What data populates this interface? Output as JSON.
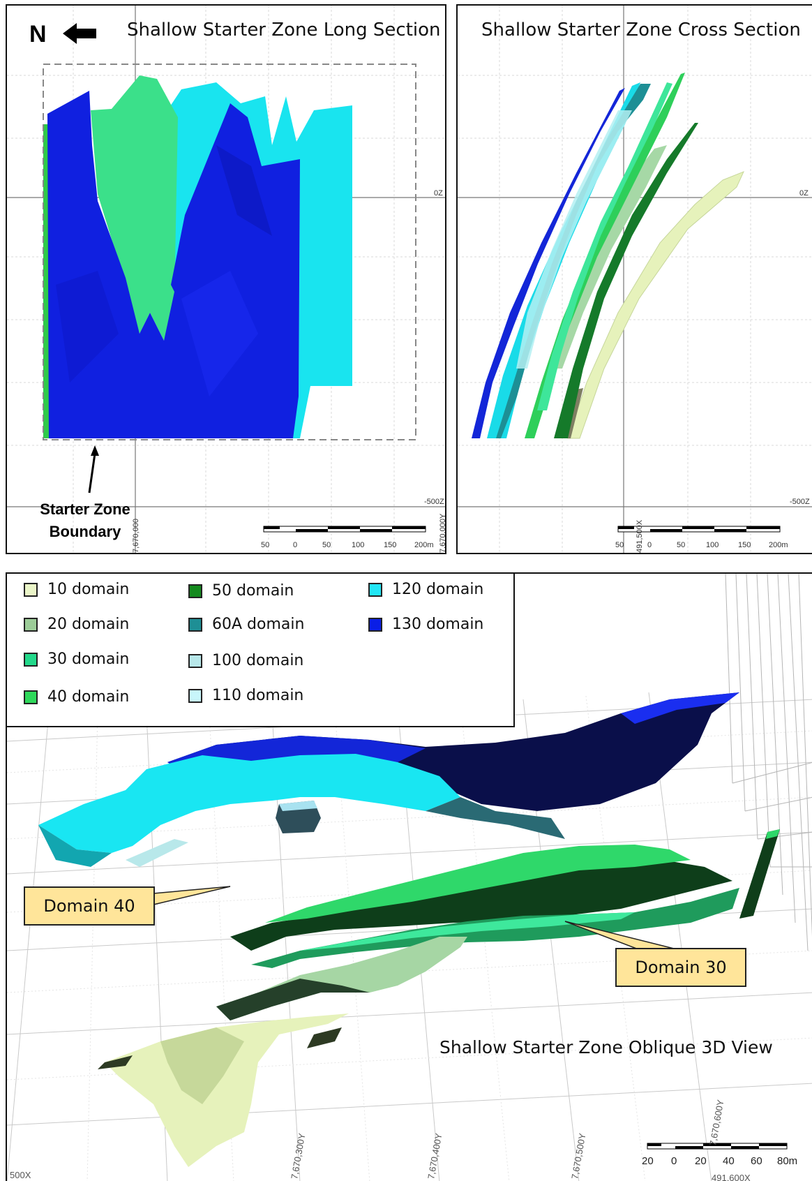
{
  "long_section": {
    "title": "Shallow Starter Zone Long Section",
    "north_label": "N",
    "boundary_label_line1": "Starter Zone",
    "boundary_label_line2": "Boundary",
    "elevation_top": "0Z",
    "elevation_bottom": "-500Z",
    "easting_label": "7,670,000Y",
    "northing_label": "7,670,000",
    "scale_ticks": [
      "50",
      "0",
      "50",
      "100",
      "150",
      "200m"
    ]
  },
  "cross_section": {
    "title": "Shallow Starter Zone Cross Section",
    "elevation_top": "0Z",
    "elevation_bottom": "-500Z",
    "coord_label": "491,500X",
    "scale_ticks": [
      "50",
      "0",
      "50",
      "100",
      "150",
      "200m"
    ]
  },
  "oblique_view": {
    "title": "Shallow Starter Zone Oblique 3D View",
    "callout_domain_40": "Domain 40",
    "callout_domain_30": "Domain 30",
    "grid_labels": [
      "7,670,300Y",
      "7,670,400Y",
      "7,670,500Y",
      "7,670,600Y"
    ],
    "edge_label": "500X",
    "bottom_label": "491,600X",
    "scale_ticks": [
      "20",
      "0",
      "20",
      "40",
      "60",
      "80m"
    ]
  },
  "legend": [
    {
      "label": "10 domain",
      "color": "#eaf5c8"
    },
    {
      "label": "20 domain",
      "color": "#9ccc98"
    },
    {
      "label": "30 domain",
      "color": "#22d88a"
    },
    {
      "label": "40 domain",
      "color": "#2ed85a"
    },
    {
      "label": "50 domain",
      "color": "#148a1e"
    },
    {
      "label": "60A domain",
      "color": "#1e8f95"
    },
    {
      "label": "100 domain",
      "color": "#b8e8ea"
    },
    {
      "label": "110 domain",
      "color": "#c8f6fb"
    },
    {
      "label": "120 domain",
      "color": "#22e6f5"
    },
    {
      "label": "130 domain",
      "color": "#0a1ee6"
    }
  ],
  "colors": {
    "blue_130": "#1020e0",
    "cyan_120": "#19e4ef",
    "green_body": "#38df86",
    "callout_fill": "#ffe59a"
  }
}
